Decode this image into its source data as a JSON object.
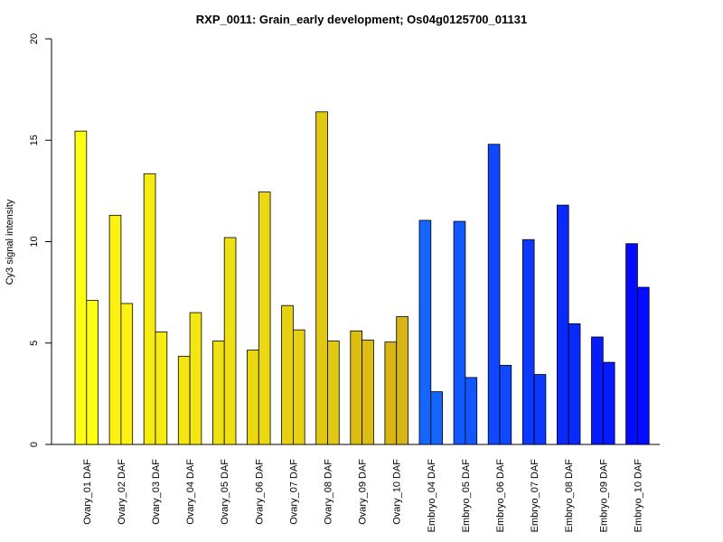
{
  "chart_data": {
    "type": "bar",
    "title": "RXP_0011: Grain_early development; Os04g0125700_01131",
    "xlabel": "",
    "ylabel": "Cy3 signal intensity",
    "ylim": [
      0,
      20
    ],
    "yticks": [
      0,
      5,
      10,
      15,
      20
    ],
    "grid": false,
    "legend": "none",
    "bars_per_group": 2,
    "categories": [
      "Ovary_01 DAF",
      "Ovary_02 DAF",
      "Ovary_03 DAF",
      "Ovary_04 DAF",
      "Ovary_05 DAF",
      "Ovary_06 DAF",
      "Ovary_07 DAF",
      "Ovary_08 DAF",
      "Ovary_09 DAF",
      "Ovary_10 DAF",
      "Embryo_04 DAF",
      "Embryo_05 DAF",
      "Embryo_06 DAF",
      "Embryo_07 DAF",
      "Embryo_08 DAF",
      "Embryo_09 DAF",
      "Embryo_10 DAF"
    ],
    "values": [
      [
        15.45,
        7.1
      ],
      [
        11.3,
        6.95
      ],
      [
        13.35,
        5.55
      ],
      [
        4.35,
        6.5
      ],
      [
        5.1,
        10.2
      ],
      [
        4.65,
        12.45
      ],
      [
        6.85,
        5.65
      ],
      [
        16.4,
        5.1
      ],
      [
        5.6,
        5.15
      ],
      [
        5.05,
        6.3
      ],
      [
        11.05,
        2.6
      ],
      [
        11.0,
        3.3
      ],
      [
        14.8,
        3.9
      ],
      [
        10.1,
        3.45
      ],
      [
        11.8,
        5.95
      ],
      [
        5.3,
        4.05
      ],
      [
        9.9,
        7.75
      ]
    ],
    "colors": [
      "#FFFF12",
      "#FBF112",
      "#F7EC12",
      "#F3E612",
      "#EFE012",
      "#EBD812",
      "#E6D012",
      "#E1C812",
      "#DCBE12",
      "#D7B512",
      "#1466FF",
      "#1257FF",
      "#0F48FF",
      "#0C39FF",
      "#092AFF",
      "#061BFF",
      "#030CFF"
    ]
  }
}
